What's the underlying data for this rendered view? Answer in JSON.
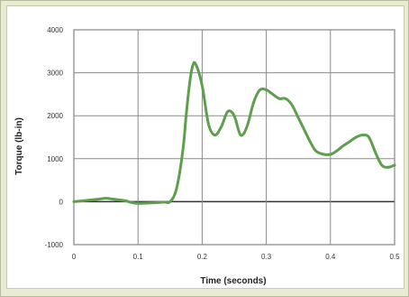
{
  "chart_data": {
    "type": "line",
    "title": "",
    "xlabel": "Time (seconds)",
    "ylabel": "Torque (lb-in)",
    "xlim": [
      0,
      0.5
    ],
    "ylim": [
      -1000,
      4000
    ],
    "x_ticks": [
      0,
      0.1,
      0.2,
      0.3,
      0.4,
      0.5
    ],
    "x_tick_labels": [
      "0",
      "0.1",
      "0.2",
      "0.3",
      "0.4",
      "0.5"
    ],
    "y_ticks": [
      -1000,
      0,
      1000,
      2000,
      3000,
      4000
    ],
    "y_tick_labels": [
      "-1000",
      "0",
      "1000",
      "2000",
      "3000",
      "4000"
    ],
    "grid": true,
    "series": [
      {
        "name": "",
        "color": "#5f9e4e",
        "x": [
          0,
          0.02,
          0.04,
          0.05,
          0.06,
          0.08,
          0.09,
          0.1,
          0.12,
          0.14,
          0.15,
          0.16,
          0.17,
          0.175,
          0.18,
          0.185,
          0.19,
          0.2,
          0.21,
          0.22,
          0.23,
          0.24,
          0.25,
          0.26,
          0.27,
          0.28,
          0.29,
          0.3,
          0.31,
          0.32,
          0.33,
          0.34,
          0.35,
          0.36,
          0.37,
          0.38,
          0.4,
          0.42,
          0.43,
          0.44,
          0.45,
          0.46,
          0.47,
          0.48,
          0.49,
          0.5
        ],
        "y": [
          0,
          30,
          60,
          80,
          60,
          20,
          -20,
          -40,
          -30,
          -10,
          0,
          300,
          1200,
          2000,
          2700,
          3150,
          3200,
          2700,
          1800,
          1550,
          1750,
          2100,
          2000,
          1550,
          1750,
          2300,
          2600,
          2600,
          2500,
          2400,
          2400,
          2250,
          1950,
          1650,
          1350,
          1150,
          1100,
          1300,
          1400,
          1500,
          1550,
          1500,
          1150,
          850,
          800,
          850
        ]
      }
    ]
  }
}
